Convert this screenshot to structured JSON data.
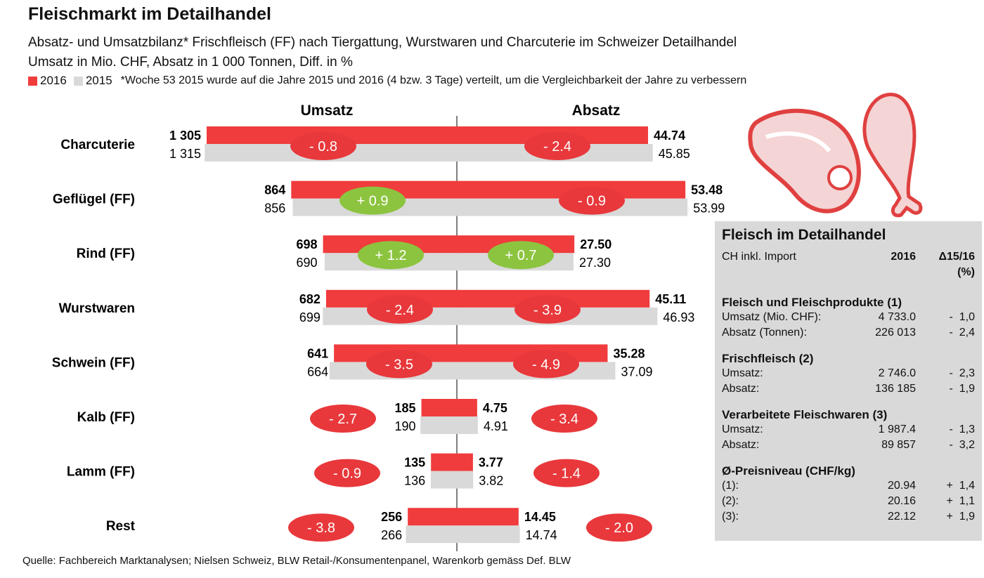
{
  "title": "Fleischmarkt im Detailhandel",
  "subtitle1": "Absatz- und Umsatzbilanz* Frischfleisch (FF) nach Tiergattung, Wurstwaren und Charcuterie im Schweizer Detailhandel",
  "subtitle2": "Umsatz in Mio. CHF, Absatz in 1 000 Tonnen, Diff. in %",
  "legend": {
    "items": [
      {
        "label": "2016",
        "color": "#f03c3c"
      },
      {
        "label": "2015",
        "color": "#d9d9d9"
      }
    ],
    "note": "*Woche 53 2015 wurde auf die Jahre 2015 und 2016 (4 bzw. 3 Tage) verteilt, um die Vergleichbarkeit der Jahre zu verbessern"
  },
  "source": "Quelle: Fachbereich Marktanalysen; Nielsen Schweiz, BLW Retail-/Konsumentenpanel, Warenkorb gemäss Def. BLW",
  "colors": {
    "bar2016": "#f03c3c",
    "bar2015": "#d9d9d9",
    "negative": "#e8383b",
    "positive": "#8cc43f"
  },
  "chart_data": {
    "type": "bar",
    "orientation": "horizontal-butterfly",
    "left_panel_title": "Umsatz",
    "right_panel_title": "Absatz",
    "categories": [
      "Charcuterie",
      "Geflügel (FF)",
      "Rind (FF)",
      "Wurstwaren",
      "Schwein (FF)",
      "Kalb (FF)",
      "Lamm (FF)",
      "Rest"
    ],
    "umsatz": {
      "2016": [
        "1 305",
        "864",
        "698",
        "682",
        "641",
        "185",
        "135",
        "256"
      ],
      "2015": [
        "1 315",
        "856",
        "690",
        "699",
        "664",
        "190",
        "136",
        "266"
      ],
      "diff": [
        "- 0.8",
        "+ 0.9",
        "+ 1.2",
        "- 2.4",
        "- 3.5",
        "- 2.7",
        "- 0.9",
        "- 3.8"
      ]
    },
    "absatz": {
      "2016": [
        "44.74",
        "53.48",
        "27.50",
        "45.11",
        "35.28",
        "4.75",
        "3.77",
        "14.45"
      ],
      "2015": [
        "45.85",
        "53.99",
        "27.30",
        "46.93",
        "37.09",
        "4.91",
        "3.82",
        "14.74"
      ],
      "diff": [
        "- 2.4",
        "- 0.9",
        "+ 0.7",
        "- 3.9",
        "- 4.9",
        "- 3.4",
        "- 1.4",
        "- 2.0"
      ]
    }
  },
  "info": {
    "title": "Fleisch im Detailhandel",
    "sub": "CH inkl. Import",
    "col_year": "2016",
    "col_delta": "Δ15/16",
    "col_delta_unit": "(%)",
    "sections": [
      {
        "heading": "Fleisch und Fleischprodukte (1)",
        "rows": [
          [
            "Umsatz (Mio. CHF):",
            "4 733.0",
            "-  1,0"
          ],
          [
            "Absatz (Tonnen):",
            "226 013",
            "-  2,4"
          ]
        ]
      },
      {
        "heading": "Frischfleisch (2)",
        "rows": [
          [
            "Umsatz:",
            "2 746.0",
            "-  2,3"
          ],
          [
            "Absatz:",
            "136 185",
            "-  1,9"
          ]
        ]
      },
      {
        "heading": "Verarbeitete Fleischwaren (3)",
        "rows": [
          [
            "Umsatz:",
            "1 987.4",
            "-  1,3"
          ],
          [
            "Absatz:",
            "89 857",
            "-  3,2"
          ]
        ]
      },
      {
        "heading": "Ø-Preisniveau (CHF/kg)",
        "rows": [
          [
            "(1):",
            "20.94",
            "+  1,4"
          ],
          [
            "(2):",
            "20.16",
            "+  1,1"
          ],
          [
            "(3):",
            "22.12",
            "+  1,9"
          ]
        ]
      }
    ]
  }
}
